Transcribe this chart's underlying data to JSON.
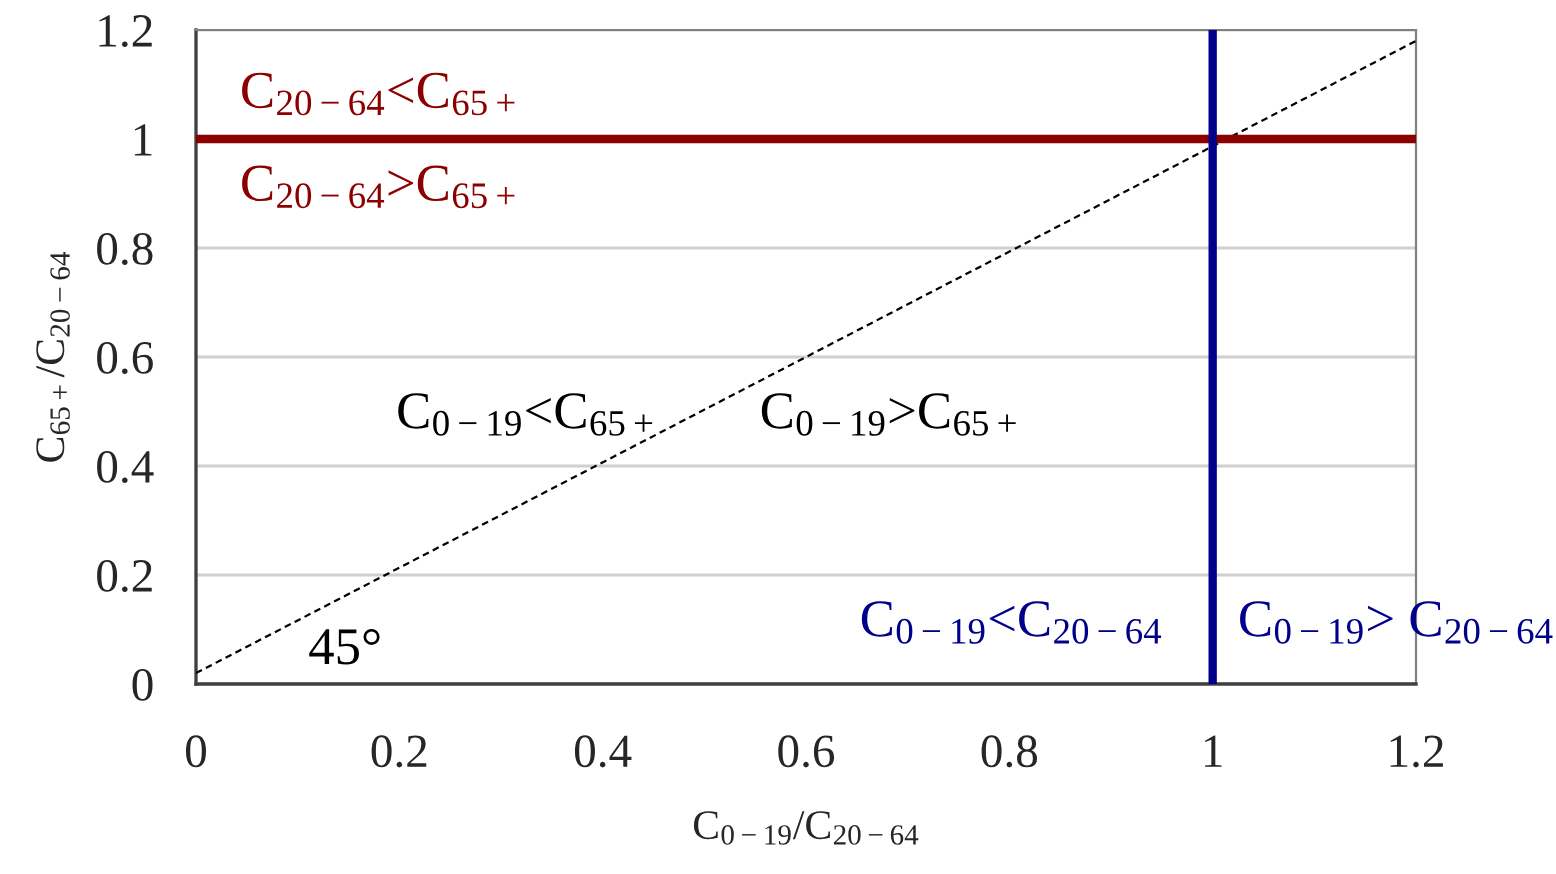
{
  "chart_data": {
    "type": "line",
    "xlabel": "C$_{0−19}$/C$_{20−64}$",
    "ylabel": "C$_{65+}$/C$_{20−64}$",
    "x": [
      0,
      1.2
    ],
    "series": [
      {
        "color": "#000000",
        "values": [
          0.02,
          1.18
        ],
        "line_style": "dashed"
      }
    ],
    "xlim": [
      0,
      1.2
    ],
    "xticks": [
      0,
      0.2,
      0.4,
      0.6,
      0.8,
      1,
      1.2
    ],
    "ylim": [
      0,
      1.2
    ],
    "yticks": [
      0,
      0.2,
      0.4,
      0.6,
      0.8,
      1,
      1.2
    ],
    "grid": "y",
    "ref_lines": [
      {
        "axis": "y",
        "value": 1,
        "color": "#8b0000"
      },
      {
        "axis": "x",
        "value": 1,
        "color": "#00008b"
      }
    ],
    "annotations": [
      "C$_{20−64}$<C$_{65+}$",
      "C$_{20−64}$>C$_{65+}$",
      "C$_{0−19}$<C$_{65+}$",
      "C$_{0−19}$>C$_{65+}$",
      "C$_{0−19}$<C$_{20−64}$",
      "C$_{0−19}$> C$_{20−64}$",
      "45°"
    ]
  }
}
